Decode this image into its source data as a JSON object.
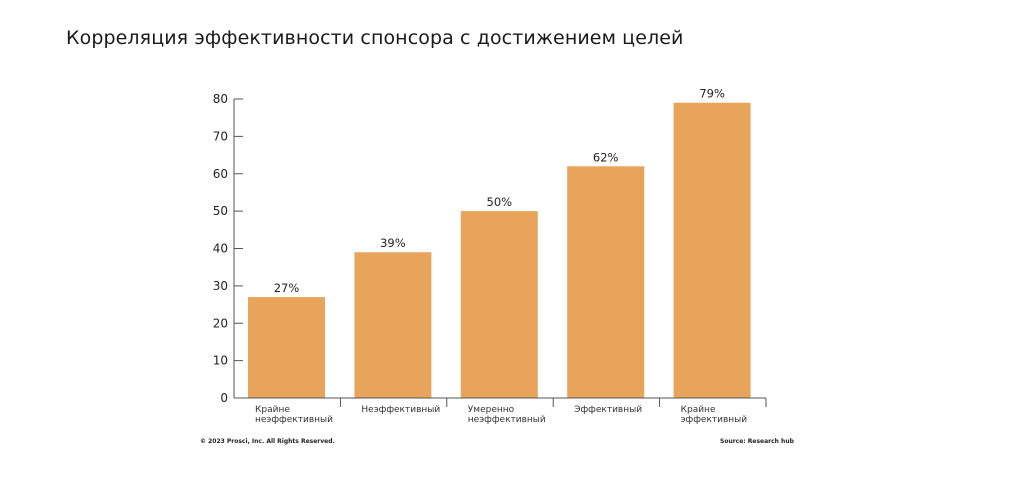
{
  "header": {
    "title": "Корреляция эффективности спонсора с достижением целей"
  },
  "footer": {
    "copyright": "© 2023 Prosci, Inc. All Rights Reserved.",
    "source": "Source: Research hub"
  },
  "colors": {
    "bar": "#E9A45C",
    "axis": "#555555"
  },
  "chart_data": {
    "type": "bar",
    "categories": [
      [
        "Крайне",
        "неэффективный"
      ],
      [
        "Неэффективный"
      ],
      [
        "Умеренно",
        "неэффективный"
      ],
      [
        "Эффективный"
      ],
      [
        "Крайне",
        "эффективный"
      ]
    ],
    "values": [
      27,
      39,
      50,
      62,
      79
    ],
    "data_labels": [
      "27%",
      "39%",
      "50%",
      "62%",
      "79%"
    ],
    "yticks": [
      "0",
      "10",
      "20",
      "30",
      "40",
      "50",
      "60",
      "70",
      "80"
    ],
    "ylim": [
      0,
      80
    ],
    "title": "",
    "xlabel": "",
    "ylabel": "",
    "grid": false,
    "legend": "none"
  }
}
